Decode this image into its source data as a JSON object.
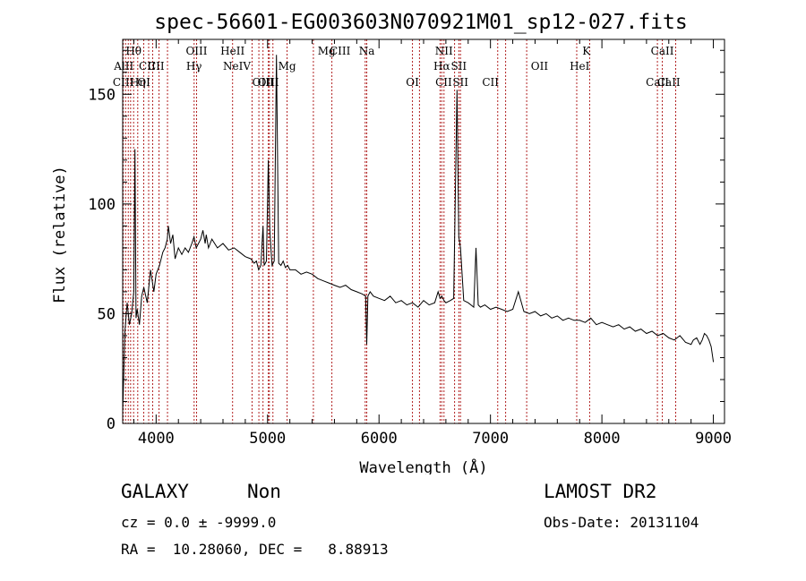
{
  "chart_data": {
    "type": "line",
    "title": "spec-56601-EG003603N070921M01_sp12-027.fits",
    "xlabel": "Wavelength (Å)",
    "ylabel": "Flux (relative)",
    "xlim": [
      3700,
      9100
    ],
    "ylim": [
      0,
      175
    ],
    "xticks": [
      "4000",
      "5000",
      "6000",
      "7000",
      "8000",
      "9000"
    ],
    "yticks": [
      "0",
      "50",
      "100",
      "150"
    ],
    "grid": false,
    "line_color": "#000000",
    "marker_color": "#b22222",
    "series": [
      {
        "x": [
          3700,
          3720,
          3740,
          3760,
          3780,
          3800,
          3810,
          3820,
          3830,
          3850,
          3870,
          3890,
          3920,
          3950,
          3980,
          4000,
          4030,
          4060,
          4080,
          4100,
          4110,
          4130,
          4150,
          4170,
          4200,
          4230,
          4260,
          4290,
          4320,
          4340,
          4360,
          4380,
          4400,
          4420,
          4440,
          4450,
          4470,
          4500,
          4550,
          4600,
          4650,
          4700,
          4750,
          4800,
          4850,
          4880,
          4900,
          4920,
          4940,
          4959,
          4970,
          4990,
          5007,
          5020,
          5040,
          5060,
          5080,
          5100,
          5120,
          5140,
          5160,
          5180,
          5200,
          5250,
          5300,
          5350,
          5400,
          5450,
          5500,
          5550,
          5600,
          5650,
          5700,
          5750,
          5800,
          5850,
          5880,
          5890,
          5900,
          5920,
          5950,
          6000,
          6050,
          6100,
          6150,
          6200,
          6250,
          6300,
          6350,
          6400,
          6450,
          6500,
          6530,
          6548,
          6563,
          6583,
          6600,
          6640,
          6670,
          6700,
          6716,
          6731,
          6760,
          6800,
          6850,
          6870,
          6890,
          6910,
          6950,
          7000,
          7050,
          7100,
          7150,
          7200,
          7250,
          7300,
          7350,
          7400,
          7450,
          7500,
          7550,
          7600,
          7650,
          7700,
          7750,
          7800,
          7850,
          7900,
          7950,
          8000,
          8050,
          8100,
          8150,
          8200,
          8250,
          8300,
          8350,
          8400,
          8450,
          8500,
          8550,
          8600,
          8650,
          8700,
          8750,
          8800,
          8820,
          8850,
          8880,
          8900,
          8920,
          8940,
          8960,
          8980,
          9000
        ],
        "y": [
          5,
          42,
          55,
          45,
          50,
          60,
          125,
          48,
          52,
          45,
          58,
          62,
          55,
          70,
          60,
          68,
          72,
          78,
          80,
          84,
          90,
          82,
          86,
          75,
          80,
          77,
          80,
          78,
          82,
          85,
          80,
          82,
          84,
          88,
          82,
          86,
          80,
          84,
          80,
          82,
          79,
          80,
          78,
          76,
          75,
          73,
          74,
          70,
          72,
          90,
          72,
          74,
          120,
          88,
          72,
          74,
          168,
          73,
          72,
          74,
          71,
          72,
          70,
          70,
          68,
          69,
          68,
          66,
          65,
          64,
          63,
          62,
          63,
          61,
          60,
          59,
          58,
          36,
          58,
          60,
          58,
          57,
          56,
          58,
          55,
          56,
          54,
          55,
          53,
          56,
          54,
          55,
          60,
          57,
          58,
          56,
          55,
          56,
          57,
          152,
          85,
          80,
          56,
          55,
          53,
          80,
          54,
          53,
          54,
          52,
          53,
          52,
          51,
          52,
          60,
          51,
          50,
          51,
          49,
          50,
          48,
          49,
          47,
          48,
          47,
          47,
          46,
          48,
          45,
          46,
          45,
          44,
          45,
          43,
          44,
          42,
          43,
          41,
          42,
          40,
          41,
          39,
          38,
          40,
          37,
          36,
          38,
          39,
          36,
          38,
          41,
          40,
          38,
          35,
          28
        ]
      }
    ],
    "spectral_lines": [
      {
        "label": "AlII",
        "x": 3710,
        "row": 2
      },
      {
        "label": "CIII",
        "x": 3705,
        "row": 3
      },
      {
        "label": "Hθ",
        "x": 3798,
        "row": 1
      },
      {
        "label": "Hη",
        "x": 3835,
        "row": 3
      },
      {
        "label": "OI",
        "x": 3890,
        "row": 3
      },
      {
        "label": "CII",
        "x": 3920,
        "row": 2
      },
      {
        "label": "CII",
        "x": 4000,
        "row": 2
      },
      {
        "label": "OIII",
        "x": 4363,
        "row": 1
      },
      {
        "label": "Hγ",
        "x": 4340,
        "row": 2
      },
      {
        "label": "HeII",
        "x": 4686,
        "row": 1
      },
      {
        "label": "NeIV",
        "x": 4725,
        "row": 2
      },
      {
        "label": "OIII",
        "x": 4959,
        "row": 3
      },
      {
        "label": "OIII",
        "x": 5007,
        "row": 3
      },
      {
        "label": "Mg",
        "x": 5175,
        "row": 2
      },
      {
        "label": "Mg",
        "x": 5530,
        "row": 1
      },
      {
        "label": "CIII",
        "x": 5650,
        "row": 1
      },
      {
        "label": "Na",
        "x": 5890,
        "row": 1
      },
      {
        "label": "OI",
        "x": 6300,
        "row": 3
      },
      {
        "label": "NII",
        "x": 6583,
        "row": 1
      },
      {
        "label": "Hα",
        "x": 6563,
        "row": 2
      },
      {
        "label": "SII",
        "x": 6716,
        "row": 2
      },
      {
        "label": "SII",
        "x": 6731,
        "row": 3
      },
      {
        "label": "CII",
        "x": 6580,
        "row": 3
      },
      {
        "label": "CII",
        "x": 7000,
        "row": 3
      },
      {
        "label": "OII",
        "x": 7440,
        "row": 2
      },
      {
        "label": "K",
        "x": 7860,
        "row": 1
      },
      {
        "label": "HeI",
        "x": 7800,
        "row": 2
      },
      {
        "label": "CaII",
        "x": 8542,
        "row": 1
      },
      {
        "label": "CaII",
        "x": 8498,
        "row": 3
      },
      {
        "label": "CaII",
        "x": 8600,
        "row": 3
      }
    ],
    "marker_lines": [
      3705,
      3726,
      3750,
      3771,
      3798,
      3835,
      3889,
      3933,
      3969,
      4026,
      4102,
      4341,
      4363,
      4686,
      4861,
      4922,
      4959,
      5007,
      5016,
      5048,
      5175,
      5411,
      5577,
      5876,
      5890,
      6300,
      6363,
      6548,
      6563,
      6583,
      6678,
      6716,
      6731,
      7065,
      7136,
      7325,
      7774,
      7890,
      8498,
      8542,
      8662
    ]
  },
  "footer": {
    "class": "GALAXY",
    "subclass": "Non",
    "survey": "LAMOST DR2",
    "cz": "cz = 0.0 ± -9999.0",
    "obs_date": "Obs-Date: 20131104",
    "radec": "RA =  10.28060, DEC =   8.88913"
  }
}
